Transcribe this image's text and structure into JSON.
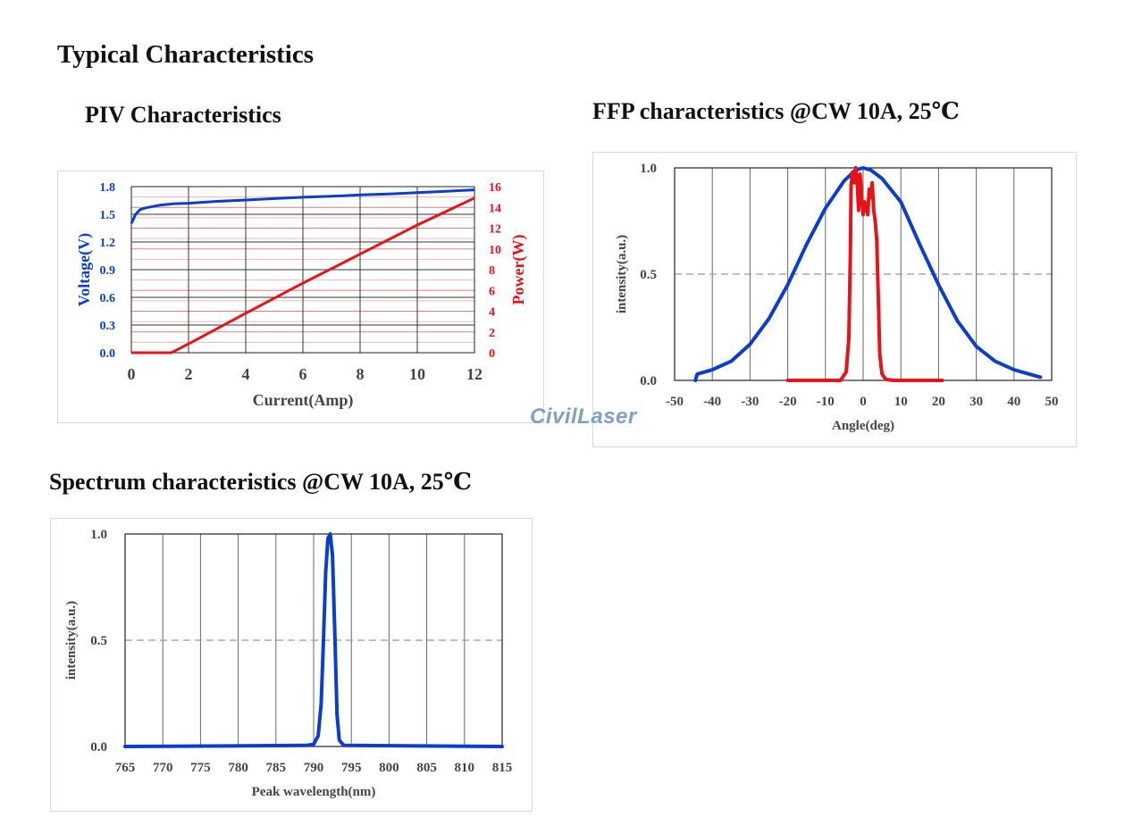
{
  "page": {
    "title": "Typical Characteristics",
    "watermark": "CivilLaser"
  },
  "colors": {
    "blue": "#0b3ecb",
    "red": "#e5141b",
    "grid": "#555555"
  },
  "piv": {
    "heading": "PIV Characteristics",
    "chart_data": {
      "type": "line",
      "xlabel": "Current(Amp)",
      "ylabel_left": "Voltage(V)",
      "ylabel_right": "Power(W)",
      "xlim": [
        0,
        12
      ],
      "ylim_left": [
        0,
        1.8
      ],
      "ylim_right": [
        0,
        16
      ],
      "xticks": [
        "0",
        "2",
        "4",
        "6",
        "8",
        "10",
        "12"
      ],
      "yticks_left": [
        "0.0",
        "0.3",
        "0.6",
        "0.9",
        "1.2",
        "1.5",
        "1.8"
      ],
      "yticks_right": [
        "0",
        "2",
        "4",
        "6",
        "8",
        "10",
        "12",
        "14",
        "16"
      ],
      "series": [
        {
          "name": "Voltage(V)",
          "axis": "left",
          "color": "#0b3ecb",
          "x": [
            0,
            0.15,
            0.3,
            0.5,
            1,
            1.5,
            2,
            3,
            4,
            5,
            6,
            7,
            8,
            9,
            10,
            11,
            12
          ],
          "y": [
            1.4,
            1.5,
            1.55,
            1.57,
            1.6,
            1.615,
            1.62,
            1.64,
            1.655,
            1.67,
            1.685,
            1.695,
            1.71,
            1.72,
            1.735,
            1.75,
            1.765
          ]
        },
        {
          "name": "Power(W)",
          "axis": "right",
          "color": "#e5141b",
          "x": [
            0,
            1.4,
            2,
            4,
            6,
            8,
            10,
            12
          ],
          "y": [
            0,
            0,
            0.85,
            3.8,
            6.7,
            9.5,
            12.3,
            14.9
          ]
        }
      ]
    }
  },
  "ffp": {
    "heading": "FFP characteristics @CW 10A, 25℃",
    "chart_data": {
      "type": "line",
      "xlabel": "Angle(deg)",
      "ylabel": "intensity(a.u.)",
      "xlim": [
        -50,
        50
      ],
      "ylim": [
        0,
        1
      ],
      "xticks": [
        "-50",
        "-40",
        "-30",
        "-20",
        "-10",
        "0",
        "10",
        "20",
        "30",
        "40",
        "50"
      ],
      "yticks": [
        "0.0",
        "0.5",
        "1.0"
      ],
      "dashed_line_y": 0.5,
      "series": [
        {
          "name": "",
          "color": "#0b3ecb",
          "x": [
            -44.5,
            -44,
            -40,
            -35,
            -30,
            -25,
            -20,
            -15,
            -10,
            -5,
            -2,
            0,
            2,
            5,
            10,
            15,
            20,
            25,
            30,
            35,
            40,
            45,
            47
          ],
          "y": [
            0.0,
            0.03,
            0.05,
            0.09,
            0.17,
            0.29,
            0.45,
            0.64,
            0.81,
            0.94,
            0.99,
            1.0,
            0.99,
            0.95,
            0.84,
            0.64,
            0.45,
            0.28,
            0.16,
            0.09,
            0.05,
            0.025,
            0.015
          ]
        },
        {
          "name": "",
          "color": "#e5141b",
          "x": [
            -20,
            -6,
            -4.5,
            -3.8,
            -3.4,
            -3.2,
            -2.8,
            -2.4,
            -2,
            -1.6,
            -1.2,
            -0.8,
            -0.4,
            0,
            0.4,
            0.8,
            1.2,
            1.6,
            2,
            2.4,
            2.8,
            3.2,
            3.6,
            4,
            4.4,
            5,
            6,
            8,
            21
          ],
          "y": [
            0,
            0,
            0.04,
            0.2,
            0.6,
            0.92,
            0.98,
            0.93,
            1.0,
            0.95,
            0.8,
            0.97,
            0.86,
            0.78,
            0.84,
            0.82,
            0.78,
            0.9,
            0.86,
            0.93,
            0.8,
            0.75,
            0.66,
            0.4,
            0.12,
            0.03,
            0.005,
            0,
            0
          ]
        }
      ]
    }
  },
  "spectrum": {
    "heading": "Spectrum characteristics @CW 10A, 25℃",
    "chart_data": {
      "type": "line",
      "xlabel": "Peak wavelength(nm)",
      "ylabel": "intensity(a.u.)",
      "xlim": [
        765,
        815
      ],
      "ylim": [
        0,
        1
      ],
      "xticks": [
        "765",
        "770",
        "775",
        "780",
        "785",
        "790",
        "795",
        "800",
        "805",
        "810",
        "815"
      ],
      "yticks": [
        "0.0",
        "0.5",
        "1.0"
      ],
      "dashed_line_y": 0.5,
      "series": [
        {
          "name": "",
          "color": "#0b3ecb",
          "x": [
            765,
            789,
            790,
            790.6,
            791,
            791.3,
            791.6,
            791.9,
            792.2,
            792.5,
            792.8,
            793.1,
            793.4,
            794,
            815
          ],
          "y": [
            0,
            0.005,
            0.01,
            0.05,
            0.2,
            0.5,
            0.82,
            0.98,
            1.0,
            0.9,
            0.55,
            0.15,
            0.03,
            0.005,
            0
          ]
        }
      ]
    }
  }
}
